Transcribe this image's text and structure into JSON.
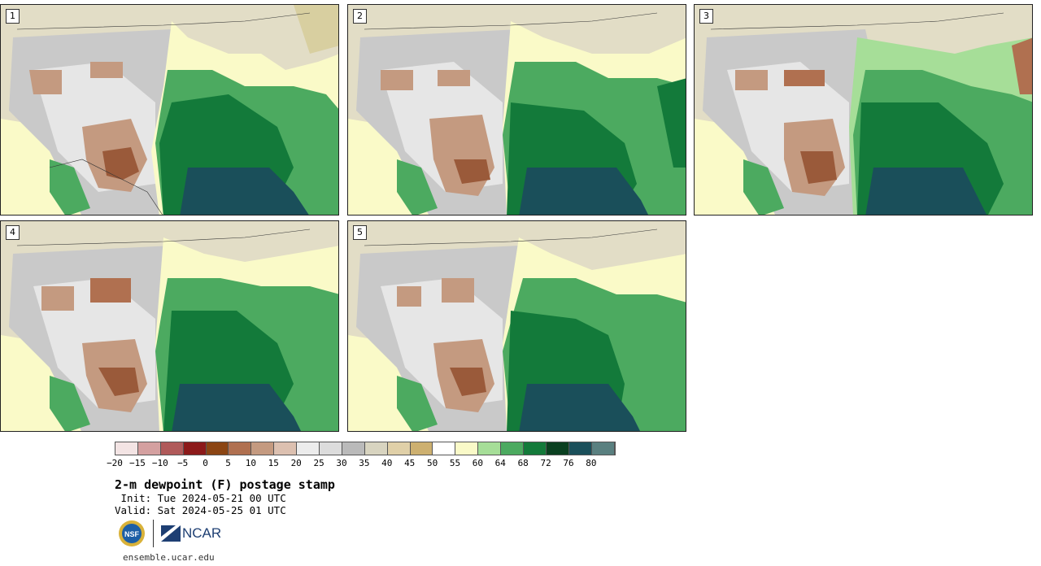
{
  "panels": [
    {
      "label": "1"
    },
    {
      "label": "2"
    },
    {
      "label": "3"
    },
    {
      "label": "4"
    },
    {
      "label": "5"
    }
  ],
  "colorbar": {
    "colors": [
      "#f3e4e4",
      "#d4a0a0",
      "#b05a5a",
      "#8c1a1a",
      "#8b4513",
      "#b07050",
      "#c49a80",
      "#dcc0b0",
      "#ececec",
      "#dcdcdc",
      "#bababa",
      "#d8d4c0",
      "#e0d0a8",
      "#cdb070",
      "#ffffff",
      "#fafac8",
      "#a6de98",
      "#4caa60",
      "#137a3a",
      "#0a4020",
      "#1a4f5a",
      "#5a8080"
    ],
    "tick_labels": [
      "−20",
      "−15",
      "−10",
      "−5",
      "0",
      "5",
      "10",
      "15",
      "20",
      "25",
      "30",
      "35",
      "40",
      "45",
      "50",
      "55",
      "60",
      "64",
      "68",
      "72",
      "76",
      "80"
    ]
  },
  "title": "2-m dewpoint (F) postage stamp",
  "init": " Init: Tue 2024-05-21 00 UTC",
  "valid": "Valid: Sat 2024-05-25 01 UTC",
  "logos": {
    "nsf_text": "NSF",
    "ncar_text": "NCAR"
  },
  "site": "ensemble.ucar.edu"
}
